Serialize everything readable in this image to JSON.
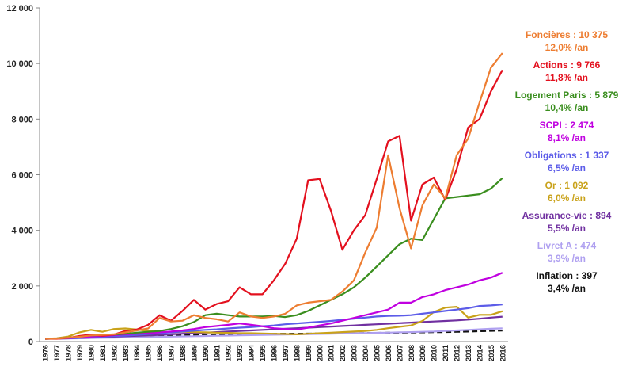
{
  "chart_data": {
    "type": "line",
    "title": "",
    "xlabel": "",
    "ylabel": "",
    "ylim": [
      0,
      12000
    ],
    "yticks": [
      "0",
      "2 000",
      "4 000",
      "6 000",
      "8 000",
      "10 000",
      "12 000"
    ],
    "x": [
      "1976",
      "1977",
      "1978",
      "1979",
      "1980",
      "1981",
      "1982",
      "1983",
      "1984",
      "1985",
      "1986",
      "1987",
      "1988",
      "1989",
      "1990",
      "1991",
      "1992",
      "1993",
      "1994",
      "1995",
      "1996",
      "1997",
      "1998",
      "1999",
      "2000",
      "2001",
      "2002",
      "2003",
      "2004",
      "2005",
      "2006",
      "2007",
      "2008",
      "2009",
      "2010",
      "2011",
      "2012",
      "2013",
      "2014",
      "2015",
      "2016"
    ],
    "grid": false,
    "legend_position": "right",
    "series": [
      {
        "name": "Foncières",
        "legend_value": "Foncières : 10 375",
        "legend_rate": "12,0% /an",
        "color": "#ED7D31",
        "dashed": false,
        "values": [
          100,
          110,
          140,
          170,
          220,
          240,
          260,
          330,
          400,
          470,
          850,
          720,
          750,
          950,
          850,
          800,
          720,
          1050,
          900,
          850,
          900,
          1000,
          1300,
          1400,
          1450,
          1500,
          1800,
          2200,
          3200,
          4100,
          6700,
          4800,
          3350,
          4900,
          5650,
          5150,
          6700,
          7300,
          8600,
          9850,
          10375
        ]
      },
      {
        "name": "Actions",
        "legend_value": "Actions : 9 766",
        "legend_rate": "11,8% /an",
        "color": "#E3101E",
        "dashed": false,
        "values": [
          100,
          100,
          130,
          200,
          250,
          210,
          250,
          380,
          430,
          600,
          950,
          750,
          1100,
          1500,
          1150,
          1350,
          1450,
          1950,
          1700,
          1700,
          2200,
          2800,
          3700,
          5800,
          5850,
          4700,
          3300,
          4000,
          4550,
          5850,
          7200,
          7400,
          4350,
          5650,
          5900,
          5100,
          6200,
          7700,
          8000,
          9000,
          9766
        ]
      },
      {
        "name": "Logement Paris",
        "legend_value": "Logement Paris : 5 879",
        "legend_rate": "10,4% /an",
        "color": "#3A8E1E",
        "dashed": false,
        "values": [
          100,
          110,
          140,
          180,
          220,
          230,
          250,
          280,
          320,
          350,
          380,
          450,
          550,
          700,
          950,
          1000,
          950,
          900,
          900,
          900,
          920,
          880,
          950,
          1100,
          1300,
          1500,
          1700,
          1950,
          2300,
          2700,
          3100,
          3500,
          3700,
          3650,
          4400,
          5150,
          5200,
          5250,
          5300,
          5500,
          5879
        ]
      },
      {
        "name": "SCPI",
        "legend_value": "SCPI : 2 474",
        "legend_rate": "8,1% /an",
        "color": "#C000E0",
        "dashed": false,
        "values": [
          100,
          110,
          125,
          150,
          180,
          200,
          230,
          260,
          280,
          300,
          330,
          360,
          400,
          450,
          520,
          560,
          600,
          650,
          600,
          550,
          480,
          450,
          430,
          500,
          580,
          650,
          750,
          850,
          950,
          1050,
          1150,
          1400,
          1400,
          1600,
          1700,
          1850,
          1950,
          2050,
          2200,
          2300,
          2474
        ]
      },
      {
        "name": "Obligations",
        "legend_value": "Obligations : 1 337",
        "legend_rate": "6,5% /an",
        "color": "#5C5CE8",
        "dashed": false,
        "values": [
          100,
          105,
          115,
          130,
          150,
          170,
          190,
          210,
          240,
          270,
          300,
          330,
          360,
          390,
          420,
          440,
          470,
          500,
          520,
          550,
          580,
          620,
          650,
          680,
          710,
          740,
          780,
          820,
          860,
          900,
          920,
          930,
          950,
          1000,
          1050,
          1100,
          1150,
          1200,
          1280,
          1300,
          1337
        ]
      },
      {
        "name": "Or",
        "legend_value": "Or : 1 092",
        "legend_rate": "6,0% /an",
        "color": "#C9A21A",
        "dashed": false,
        "values": [
          100,
          120,
          180,
          330,
          420,
          350,
          450,
          470,
          430,
          380,
          350,
          330,
          350,
          340,
          330,
          320,
          310,
          300,
          300,
          290,
          280,
          270,
          260,
          280,
          300,
          320,
          340,
          360,
          380,
          420,
          480,
          530,
          580,
          740,
          1060,
          1220,
          1250,
          860,
          960,
          960,
          1092
        ]
      },
      {
        "name": "Assurance-vie",
        "legend_value": "Assurance-vie : 894",
        "legend_rate": "5,5% /an",
        "color": "#7030A0",
        "dashed": false,
        "values": [
          100,
          108,
          118,
          130,
          145,
          160,
          175,
          190,
          205,
          220,
          240,
          260,
          280,
          300,
          320,
          340,
          360,
          380,
          400,
          420,
          440,
          460,
          480,
          500,
          520,
          540,
          560,
          580,
          600,
          620,
          640,
          660,
          680,
          700,
          720,
          740,
          760,
          790,
          820,
          860,
          894
        ]
      },
      {
        "name": "Livret A",
        "legend_value": "Livret A : 474",
        "legend_rate": "3,9% /an",
        "color": "#AFA0F0",
        "dashed": false,
        "values": [
          100,
          105,
          110,
          118,
          125,
          133,
          140,
          148,
          155,
          162,
          170,
          178,
          185,
          192,
          200,
          208,
          215,
          222,
          230,
          238,
          245,
          252,
          260,
          268,
          275,
          283,
          290,
          298,
          305,
          313,
          320,
          330,
          340,
          350,
          360,
          380,
          400,
          420,
          440,
          460,
          474
        ]
      },
      {
        "name": "Inflation",
        "legend_value": "Inflation : 397",
        "legend_rate": "3,4% /an",
        "color": "#111111",
        "dashed": true,
        "values": [
          100,
          108,
          118,
          130,
          145,
          160,
          175,
          188,
          200,
          210,
          215,
          222,
          228,
          235,
          242,
          250,
          255,
          260,
          265,
          270,
          275,
          280,
          283,
          285,
          290,
          293,
          296,
          300,
          305,
          310,
          315,
          320,
          325,
          330,
          335,
          340,
          350,
          360,
          370,
          385,
          397
        ]
      }
    ]
  }
}
